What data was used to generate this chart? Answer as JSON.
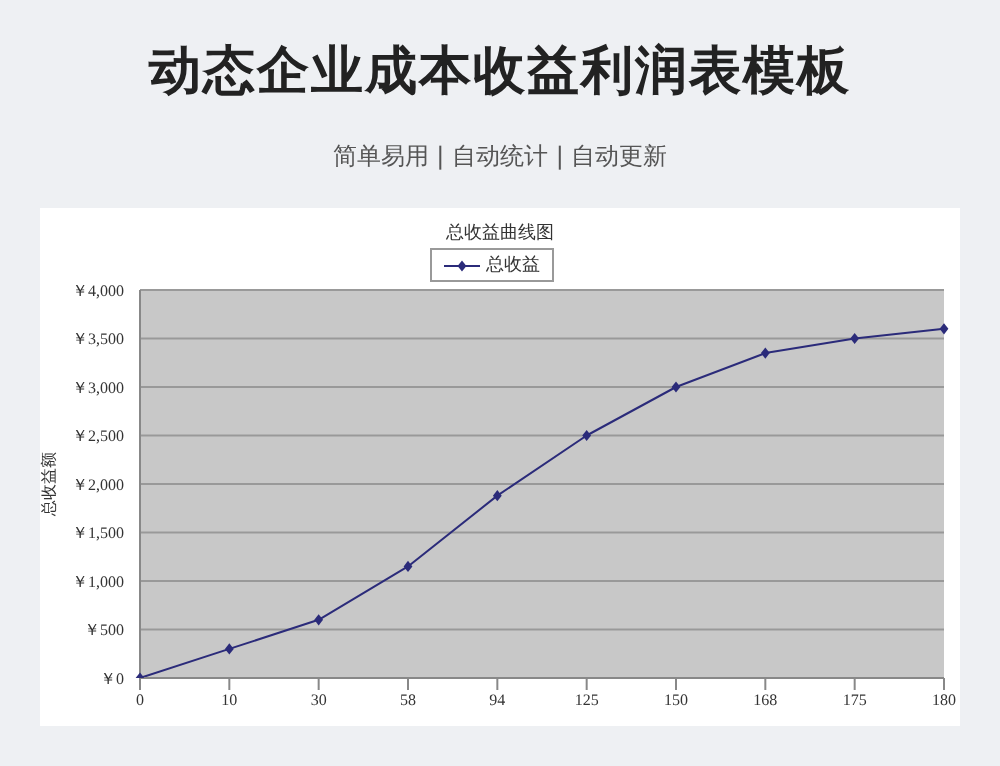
{
  "chart_data": {
    "type": "line",
    "title": "动态企业成本收益利润表模板",
    "subtitle": "简单易用 | 自动统计 | 自动更新",
    "annotations": [
      "总收益曲线图"
    ],
    "ylabel": "总收益额",
    "categories": [
      "0",
      "10",
      "30",
      "58",
      "94",
      "125",
      "150",
      "168",
      "175",
      "180"
    ],
    "series": [
      {
        "name": "总收益",
        "color": "#2b2b7a",
        "values": [
          0,
          300,
          600,
          1150,
          1880,
          2500,
          3000,
          3350,
          3500,
          3600
        ]
      }
    ],
    "ylim": [
      0,
      4000
    ],
    "yticks": [
      {
        "value": 0,
        "label": "￥0"
      },
      {
        "value": 500,
        "label": "￥500"
      },
      {
        "value": 1000,
        "label": "￥1,000"
      },
      {
        "value": 1500,
        "label": "￥1,500"
      },
      {
        "value": 2000,
        "label": "￥2,000"
      },
      {
        "value": 2500,
        "label": "￥2,500"
      },
      {
        "value": 3000,
        "label": "￥3,000"
      },
      {
        "value": 3500,
        "label": "￥3,500"
      },
      {
        "value": 4000,
        "label": "￥4,000"
      }
    ],
    "grid": "y",
    "legend": "top",
    "marker": "diamond",
    "line_style": "solid"
  }
}
